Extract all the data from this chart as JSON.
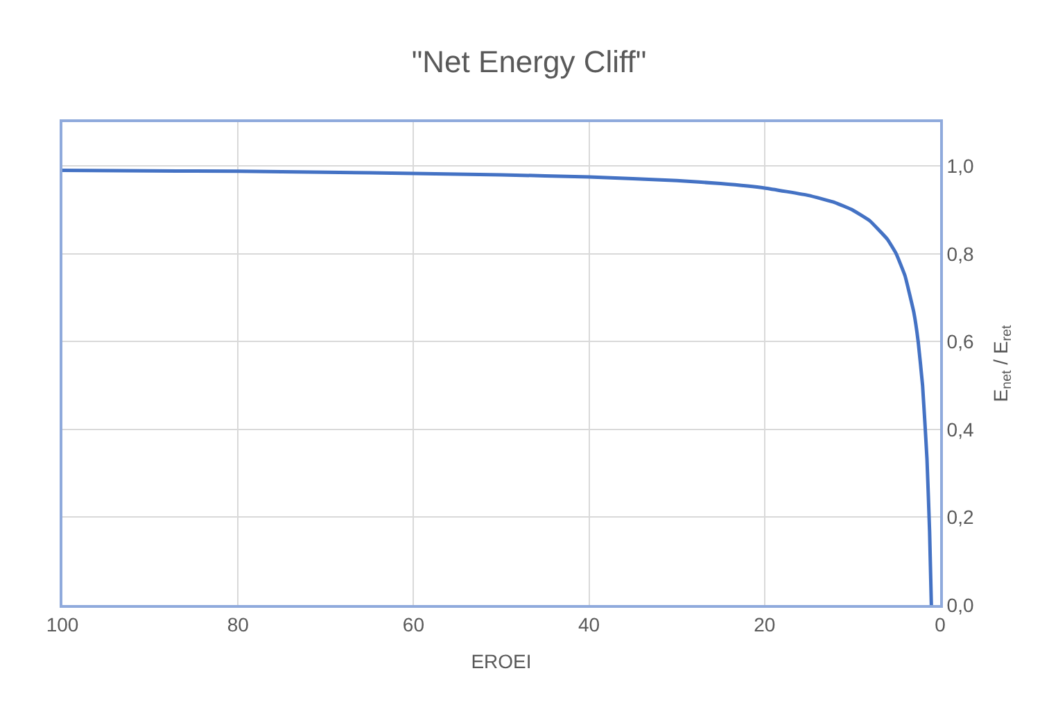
{
  "chart_data": {
    "type": "line",
    "title": "\"Net Energy Cliff\"",
    "xlabel": "EROEI",
    "ylabel": "E$_{net}$ / E$_{ret}$",
    "x": [
      100,
      90,
      80,
      70,
      60,
      50,
      40,
      30,
      25,
      20,
      15,
      12,
      10,
      8,
      6,
      5,
      4,
      3,
      2.5,
      2,
      1.5,
      1.2,
      1
    ],
    "series": [
      {
        "color": "#4472c4",
        "values": [
          0.99,
          0.989,
          0.988,
          0.986,
          0.983,
          0.98,
          0.975,
          0.967,
          0.96,
          0.95,
          0.933,
          0.917,
          0.9,
          0.875,
          0.833,
          0.8,
          0.75,
          0.667,
          0.6,
          0.5,
          0.333,
          0.167,
          0
        ]
      }
    ],
    "xlim": [
      100,
      0
    ],
    "xticks": [
      100,
      80,
      60,
      40,
      20,
      0
    ],
    "ylim": [
      0,
      1.1
    ],
    "yticks": [
      {
        "value": 0,
        "label": "0,0"
      },
      {
        "value": 0.2,
        "label": "0,2"
      },
      {
        "value": 0.4,
        "label": "0,4"
      },
      {
        "value": 0.6,
        "label": "0,6"
      },
      {
        "value": 0.8,
        "label": "0,8"
      },
      {
        "value": 1.0,
        "label": "1,0"
      }
    ],
    "grid": true,
    "marker": "none",
    "line_style": "solid"
  }
}
